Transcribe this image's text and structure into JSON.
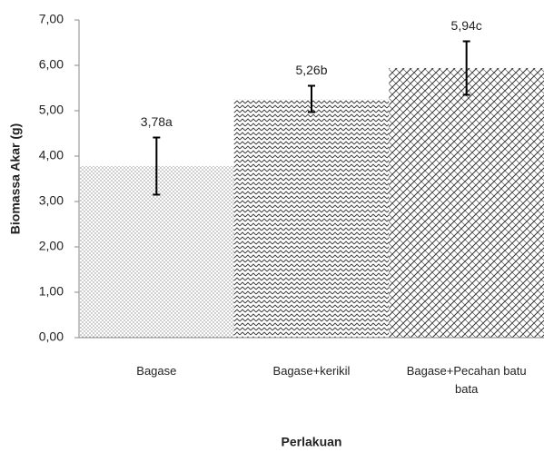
{
  "chart_data": {
    "type": "bar",
    "xlabel": "Perlakuan",
    "ylabel": "Biomassa Akar (g)",
    "categories": [
      "Bagase",
      "Bagase+kerikil",
      "Bagase+Pecahan batu bata"
    ],
    "values": [
      3.78,
      5.26,
      5.94
    ],
    "value_labels": [
      "3,78a",
      "5,26b",
      "5,94c"
    ],
    "errors": [
      0.63,
      0.29,
      0.59
    ],
    "ylim": [
      0,
      7
    ],
    "yticks": [
      {
        "value": 0,
        "label": "0,00"
      },
      {
        "value": 1,
        "label": "1,00"
      },
      {
        "value": 2,
        "label": "2,00"
      },
      {
        "value": 3,
        "label": "3,00"
      },
      {
        "value": 4,
        "label": "4,00"
      },
      {
        "value": 5,
        "label": "5,00"
      },
      {
        "value": 6,
        "label": "6,00"
      },
      {
        "value": 7,
        "label": "7,00"
      }
    ],
    "grid": false
  }
}
